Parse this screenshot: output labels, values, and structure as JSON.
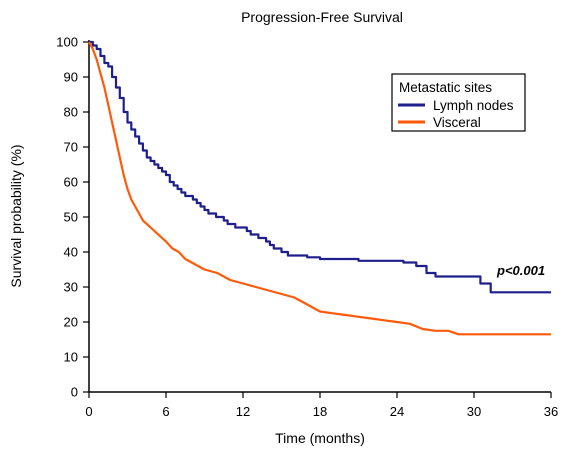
{
  "chart_data": {
    "type": "line",
    "title": "Progression-Free Survival",
    "xlabel": "Time (months)",
    "ylabel": "Survival probability (%)",
    "xlim": [
      0,
      36
    ],
    "ylim": [
      0,
      100
    ],
    "xticks": [
      0,
      6,
      12,
      18,
      24,
      30,
      36
    ],
    "yticks": [
      0,
      10,
      20,
      30,
      40,
      50,
      60,
      70,
      80,
      90,
      100
    ],
    "grid": false,
    "legend": {
      "title": "Metastatic sites",
      "position": "top-right"
    },
    "annotation": {
      "text": "p<0.001"
    },
    "series": [
      {
        "name": "Lymph nodes",
        "color": "#1f1f8c",
        "step": true,
        "x": [
          0,
          0.3,
          0.6,
          0.9,
          1.2,
          1.5,
          1.8,
          2.1,
          2.4,
          2.7,
          3.0,
          3.3,
          3.6,
          3.9,
          4.2,
          4.5,
          4.8,
          5.1,
          5.4,
          5.7,
          6.0,
          6.3,
          6.6,
          6.9,
          7.2,
          7.5,
          7.8,
          8.1,
          8.4,
          8.7,
          9.0,
          9.3,
          9.6,
          9.9,
          10.2,
          10.5,
          10.8,
          11.1,
          11.4,
          11.7,
          12.0,
          12.3,
          12.6,
          12.9,
          13.2,
          13.5,
          13.8,
          14.1,
          14.4,
          14.7,
          15.0,
          15.5,
          16.0,
          17.0,
          18.0,
          21.0,
          24.5,
          25.5,
          26.3,
          27.0,
          30.5,
          31.3,
          36.0
        ],
        "y": [
          100,
          99,
          98,
          96,
          94,
          93,
          90,
          87,
          84,
          80,
          77,
          75,
          73,
          71,
          69,
          67,
          66,
          65,
          64,
          63,
          62,
          60,
          59,
          58,
          57,
          56,
          56,
          55,
          54,
          53,
          52,
          51,
          51,
          50,
          50,
          49,
          48,
          48,
          47,
          47,
          47,
          46,
          45,
          45,
          44,
          44,
          43,
          42,
          41,
          41,
          40,
          39,
          39,
          38.5,
          38,
          37.5,
          37,
          36,
          34,
          33,
          31,
          28.5,
          28.5
        ]
      },
      {
        "name": "Visceral",
        "color": "#ff5a0a",
        "step": false,
        "x": [
          0,
          0.3,
          0.6,
          0.9,
          1.2,
          1.5,
          1.8,
          2.1,
          2.4,
          2.7,
          3.0,
          3.3,
          3.6,
          3.9,
          4.2,
          4.5,
          4.8,
          5.1,
          5.4,
          5.7,
          6.0,
          6.5,
          7.0,
          7.5,
          8.0,
          9.0,
          10.0,
          11.0,
          12.0,
          13.0,
          14.0,
          15.0,
          16.0,
          17.0,
          18.0,
          19.0,
          20.0,
          21.0,
          22.0,
          23.0,
          24.0,
          25.0,
          26.0,
          27.0,
          28.0,
          28.8,
          30.0,
          36.0
        ],
        "y": [
          100,
          98,
          95,
          91,
          87,
          82,
          77,
          72,
          67,
          62,
          58,
          55,
          53,
          51,
          49,
          48,
          47,
          46,
          45,
          44,
          43,
          41,
          40,
          38,
          37,
          35,
          34,
          32,
          31,
          30,
          29,
          28,
          27,
          25,
          23,
          22.5,
          22,
          21.5,
          21,
          20.5,
          20,
          19.5,
          18,
          17.5,
          17.5,
          16.5,
          16.5,
          16.5
        ]
      }
    ]
  }
}
